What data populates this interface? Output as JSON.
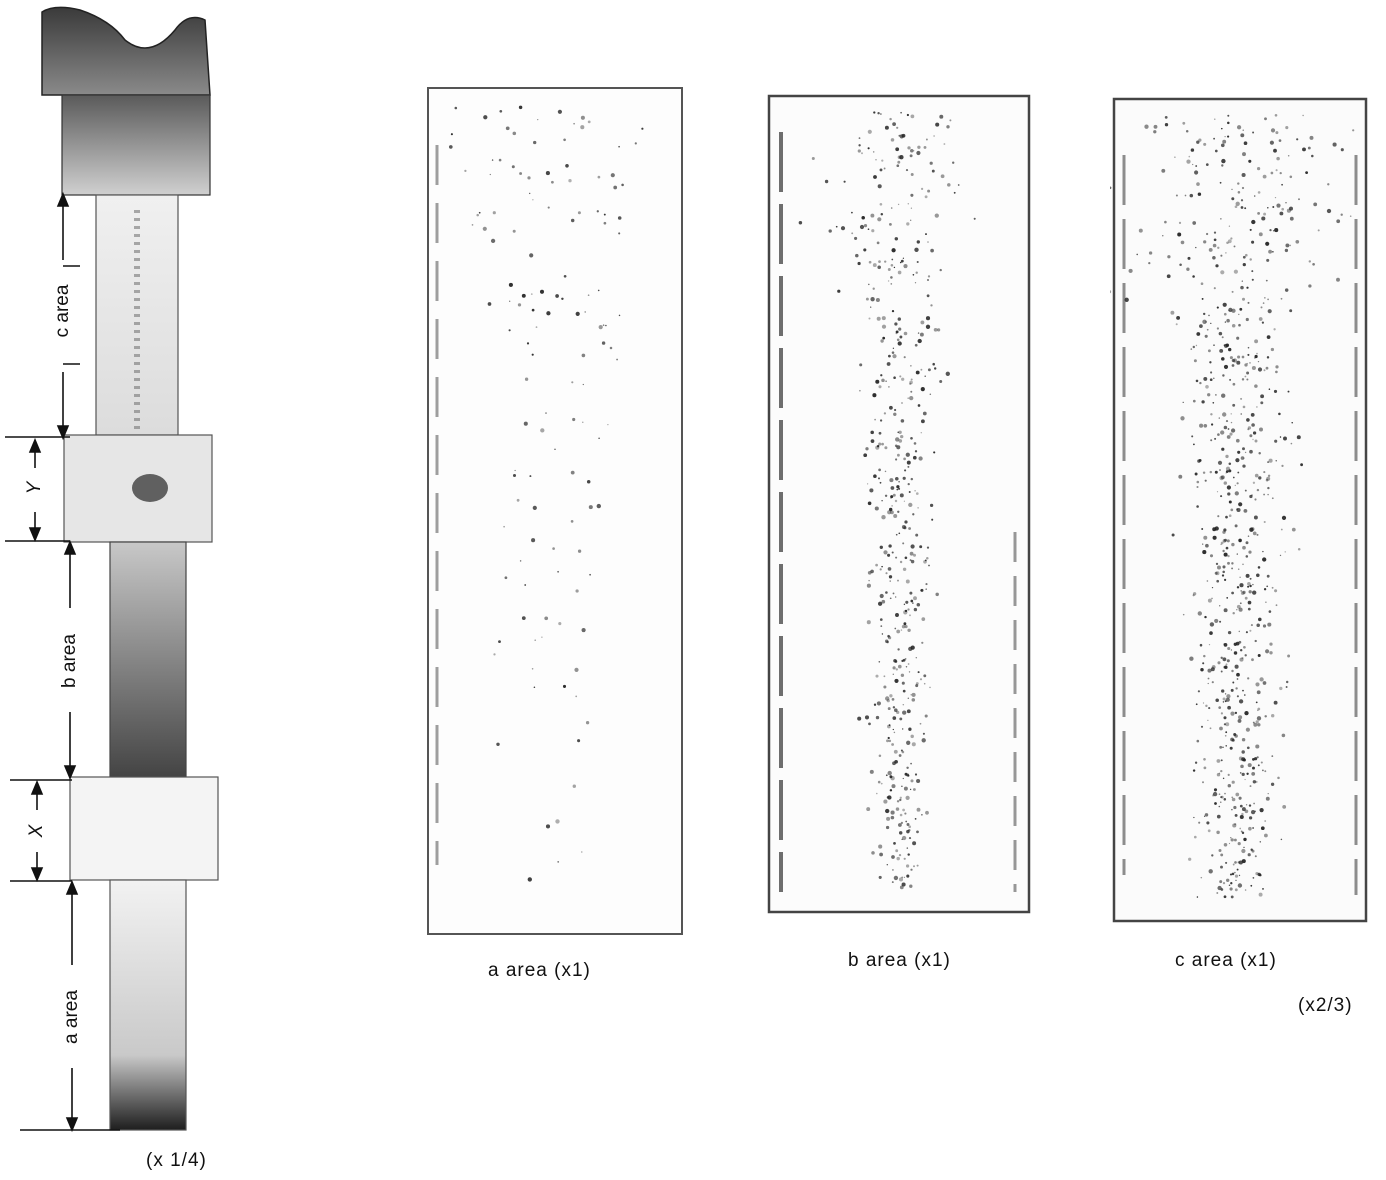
{
  "specimen": {
    "scale_label": "(x 1/4)",
    "area_labels": {
      "c": "c area",
      "b": "b area",
      "a": "a area"
    },
    "dimension_labels": {
      "y": "Y",
      "x": "X"
    }
  },
  "panels": [
    {
      "caption": "a area (x1)"
    },
    {
      "caption": "b area (x1)"
    },
    {
      "caption": "c area (x1)"
    }
  ],
  "panel_scale_label": "(x2/3)",
  "colors": {
    "ink": "#111111",
    "metal_light": "#e9e9e9",
    "metal_dark": "#3a3a3a",
    "paper": "#ffffff"
  }
}
